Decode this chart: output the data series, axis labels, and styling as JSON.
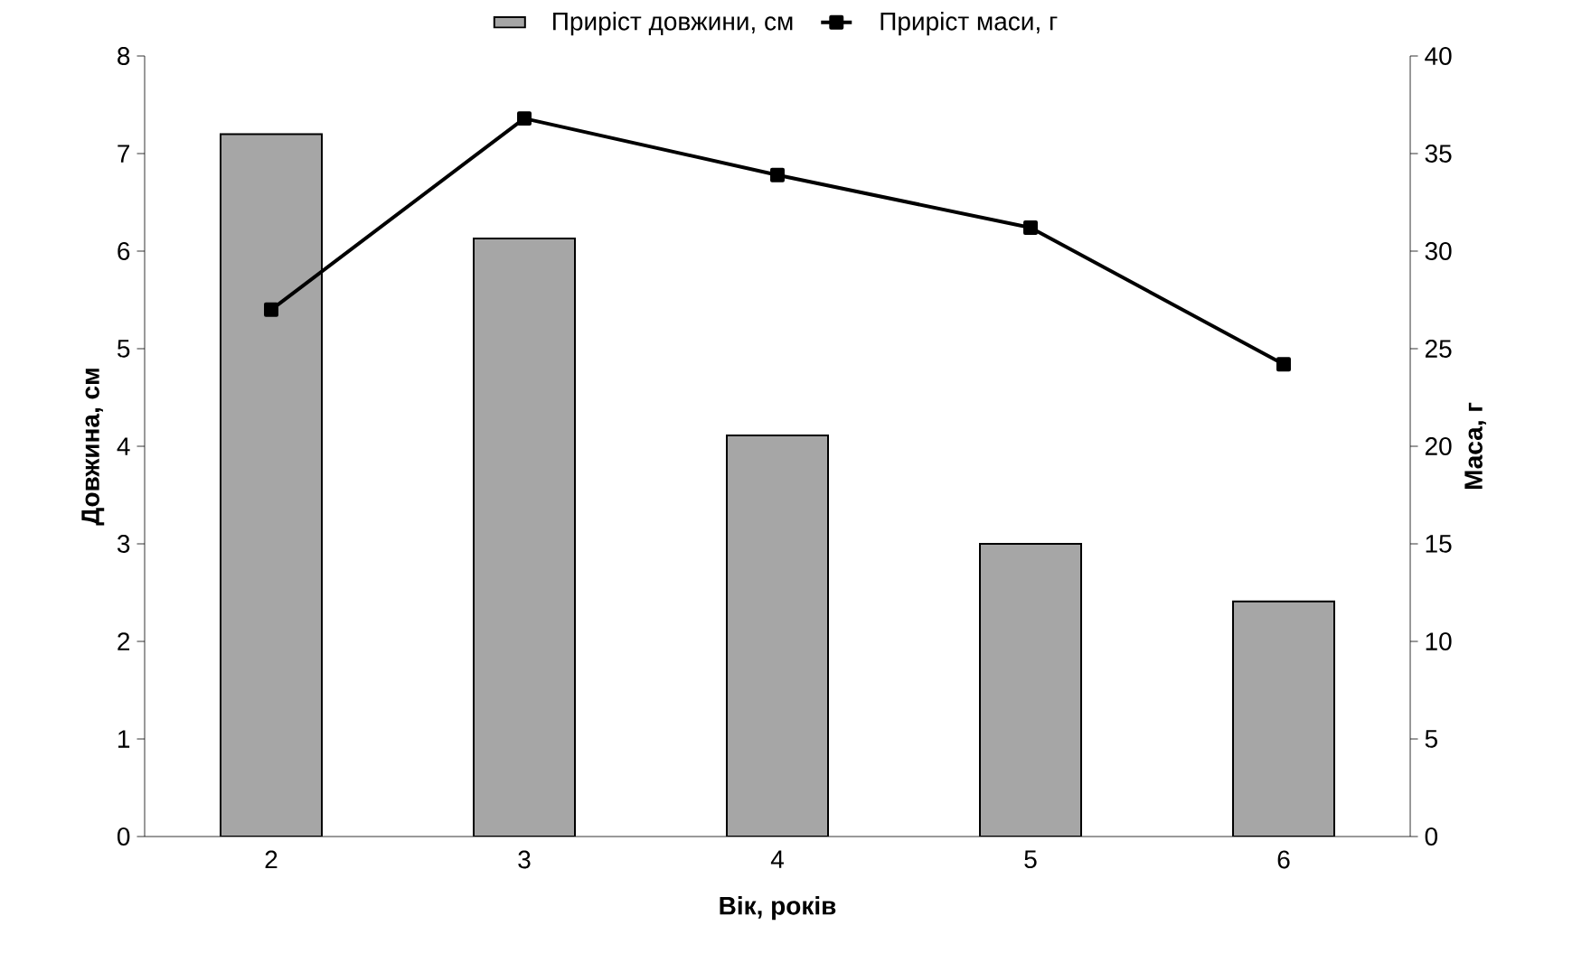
{
  "chart_data": {
    "type": "bar",
    "xlabel": "Вік, років",
    "ylabel": "Довжина, см",
    "y2label": "Маса, г",
    "categories": [
      "2",
      "3",
      "4",
      "5",
      "6"
    ],
    "series": [
      {
        "name": "Приріст довжини, см",
        "color": "#a6a6a6",
        "values": [
          7.2,
          6.13,
          4.11,
          3.0,
          2.41
        ]
      },
      {
        "name": "Приріст маси, г",
        "type": "line",
        "axis": "y2",
        "color": "#000000",
        "marker": "square",
        "values": [
          27.0,
          36.8,
          33.9,
          31.2,
          24.2
        ]
      }
    ],
    "ylim": [
      0,
      8
    ],
    "yticks": [
      0,
      1,
      2,
      3,
      4,
      5,
      6,
      7,
      8
    ],
    "y2lim": [
      0,
      40
    ],
    "y2ticks": [
      0,
      5,
      10,
      15,
      20,
      25,
      30,
      35,
      40
    ],
    "legend": "top"
  }
}
